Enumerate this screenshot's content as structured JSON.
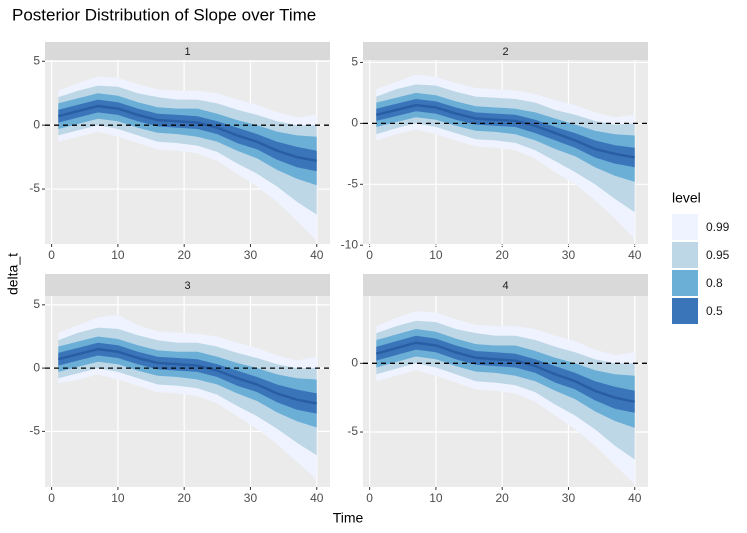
{
  "chart_data": {
    "type": "ribbon",
    "title": "Posterior Distribution of Slope over Time",
    "xlabel": "Time",
    "ylabel": "delta_t",
    "legend_title": "level",
    "grid": true,
    "hline": 0,
    "median_color": "#2a5ea4",
    "x": [
      1,
      4,
      7,
      10,
      13,
      16,
      19,
      22,
      25,
      28,
      31,
      34,
      37,
      40
    ],
    "xlim": [
      -1,
      42
    ],
    "xticks": [
      0,
      10,
      20,
      30,
      40
    ],
    "facets": [
      {
        "label": "1",
        "ylim": [
          -9.3,
          5.1
        ],
        "yticks": [
          -5,
          0,
          5
        ],
        "bands": [
          {
            "name": "0.99",
            "color": "#eff3ff",
            "lower": [
              -1.3,
              -0.9,
              -0.5,
              -0.9,
              -1.4,
              -1.9,
              -2.0,
              -2.2,
              -2.8,
              -3.8,
              -4.8,
              -6.0,
              -7.5,
              -9.0
            ],
            "upper": [
              2.7,
              3.3,
              3.8,
              3.7,
              3.2,
              2.8,
              2.7,
              2.7,
              2.5,
              2.0,
              1.6,
              1.0,
              0.6,
              0.8
            ]
          },
          {
            "name": "0.95",
            "color": "#bdd7e7",
            "lower": [
              -0.8,
              -0.4,
              0,
              -0.3,
              -0.8,
              -1.3,
              -1.4,
              -1.6,
              -2.1,
              -3.0,
              -3.8,
              -4.8,
              -6.0,
              -7.0
            ],
            "upper": [
              2.2,
              2.7,
              3.1,
              3.0,
              2.5,
              2.2,
              2.0,
              2.0,
              1.7,
              1.2,
              0.8,
              0.3,
              0,
              0
            ]
          },
          {
            "name": "0.8",
            "color": "#6baed6",
            "lower": [
              -0.3,
              0.1,
              0.5,
              0.3,
              -0.2,
              -0.6,
              -0.7,
              -0.9,
              -1.3,
              -2.0,
              -2.6,
              -3.5,
              -4.2,
              -4.7
            ],
            "upper": [
              1.7,
              2.1,
              2.5,
              2.3,
              1.8,
              1.4,
              1.3,
              1.3,
              0.9,
              0.4,
              0,
              -0.5,
              -0.8,
              -0.9
            ]
          },
          {
            "name": "0.5",
            "color": "#3a75b9",
            "lower": [
              0.2,
              0.6,
              1.0,
              0.8,
              0.3,
              -0.1,
              -0.2,
              -0.3,
              -0.7,
              -1.4,
              -1.9,
              -2.7,
              -3.3,
              -3.6
            ],
            "upper": [
              1.2,
              1.6,
              2.0,
              1.8,
              1.3,
              0.9,
              0.8,
              0.7,
              0.3,
              -0.2,
              -0.7,
              -1.3,
              -1.7,
              -2.0
            ]
          }
        ],
        "median": [
          0.7,
          1.1,
          1.5,
          1.3,
          0.8,
          0.4,
          0.3,
          0.2,
          -0.2,
          -0.8,
          -1.3,
          -2.0,
          -2.5,
          -2.8
        ]
      },
      {
        "label": "2",
        "ylim": [
          -9.9,
          5.2
        ],
        "yticks": [
          -10,
          -5,
          0,
          5
        ],
        "bands": [
          {
            "name": "0.99",
            "color": "#eff3ff",
            "lower": [
              -1.4,
              -0.9,
              -0.5,
              -0.9,
              -1.4,
              -1.9,
              -2.0,
              -2.2,
              -2.9,
              -4.0,
              -5.0,
              -6.3,
              -7.8,
              -9.5
            ],
            "upper": [
              2.8,
              3.4,
              4.0,
              3.8,
              3.3,
              2.9,
              2.8,
              2.7,
              2.4,
              1.9,
              1.5,
              0.9,
              0.5,
              0.7
            ]
          },
          {
            "name": "0.95",
            "color": "#bdd7e7",
            "lower": [
              -0.9,
              -0.4,
              0,
              -0.3,
              -0.8,
              -1.3,
              -1.4,
              -1.6,
              -2.2,
              -3.1,
              -4.0,
              -5.0,
              -6.2,
              -7.3
            ],
            "upper": [
              2.2,
              2.8,
              3.2,
              3.1,
              2.6,
              2.2,
              2.1,
              2.0,
              1.7,
              1.1,
              0.7,
              0.2,
              -0.1,
              0
            ]
          },
          {
            "name": "0.8",
            "color": "#6baed6",
            "lower": [
              -0.3,
              0.1,
              0.5,
              0.3,
              -0.2,
              -0.6,
              -0.7,
              -0.9,
              -1.4,
              -2.1,
              -2.7,
              -3.6,
              -4.3,
              -4.8
            ],
            "upper": [
              1.7,
              2.1,
              2.5,
              2.3,
              1.8,
              1.4,
              1.3,
              1.2,
              0.9,
              0.4,
              -0.1,
              -0.6,
              -0.9,
              -1.0
            ]
          },
          {
            "name": "0.5",
            "color": "#3a75b9",
            "lower": [
              0.2,
              0.6,
              1.0,
              0.8,
              0.3,
              -0.1,
              -0.2,
              -0.3,
              -0.8,
              -1.4,
              -2.0,
              -2.8,
              -3.3,
              -3.6
            ],
            "upper": [
              1.2,
              1.6,
              2.0,
              1.8,
              1.3,
              0.9,
              0.8,
              0.7,
              0.3,
              -0.3,
              -0.8,
              -1.4,
              -1.8,
              -2.0
            ]
          }
        ],
        "median": [
          0.7,
          1.1,
          1.5,
          1.3,
          0.8,
          0.4,
          0.3,
          0.2,
          -0.2,
          -0.8,
          -1.4,
          -2.1,
          -2.5,
          -2.8
        ]
      },
      {
        "label": "3",
        "ylim": [
          -9.4,
          5.7
        ],
        "yticks": [
          -5,
          0,
          5
        ],
        "bands": [
          {
            "name": "0.99",
            "color": "#eff3ff",
            "lower": [
              -1.2,
              -0.9,
              -0.5,
              -0.9,
              -1.4,
              -1.9,
              -2.0,
              -2.2,
              -2.8,
              -3.8,
              -4.8,
              -6.0,
              -7.4,
              -8.8
            ],
            "upper": [
              2.8,
              3.4,
              4.0,
              4.2,
              3.4,
              2.9,
              2.8,
              2.7,
              2.5,
              2.0,
              1.6,
              1.0,
              0.6,
              0.9
            ]
          },
          {
            "name": "0.95",
            "color": "#bdd7e7",
            "lower": [
              -0.8,
              -0.4,
              0,
              -0.3,
              -0.8,
              -1.3,
              -1.4,
              -1.6,
              -2.1,
              -3.0,
              -3.8,
              -4.8,
              -5.9,
              -6.9
            ],
            "upper": [
              2.2,
              2.8,
              3.2,
              3.1,
              2.6,
              2.2,
              2.0,
              2.0,
              1.7,
              1.2,
              0.8,
              0.3,
              0,
              0
            ]
          },
          {
            "name": "0.8",
            "color": "#6baed6",
            "lower": [
              -0.3,
              0.1,
              0.5,
              0.3,
              -0.2,
              -0.6,
              -0.7,
              -0.9,
              -1.3,
              -2.0,
              -2.6,
              -3.5,
              -4.2,
              -4.7
            ],
            "upper": [
              1.7,
              2.1,
              2.5,
              2.3,
              1.8,
              1.4,
              1.3,
              1.3,
              0.9,
              0.4,
              0,
              -0.5,
              -0.8,
              -0.9
            ]
          },
          {
            "name": "0.5",
            "color": "#3a75b9",
            "lower": [
              0.2,
              0.6,
              1.0,
              0.8,
              0.3,
              -0.1,
              -0.2,
              -0.3,
              -0.7,
              -1.4,
              -1.9,
              -2.7,
              -3.3,
              -3.6
            ],
            "upper": [
              1.2,
              1.6,
              2.0,
              1.8,
              1.3,
              0.9,
              0.8,
              0.7,
              0.3,
              -0.2,
              -0.7,
              -1.3,
              -1.7,
              -2.0
            ]
          }
        ],
        "median": [
          0.7,
          1.1,
          1.5,
          1.3,
          0.8,
          0.4,
          0.3,
          0.2,
          -0.2,
          -0.8,
          -1.3,
          -2.0,
          -2.5,
          -2.8
        ]
      },
      {
        "label": "4",
        "ylim": [
          -9.0,
          4.9
        ],
        "yticks": [
          -5,
          0
        ],
        "bands": [
          {
            "name": "0.99",
            "color": "#eff3ff",
            "lower": [
              -1.3,
              -0.9,
              -0.5,
              -0.9,
              -1.4,
              -1.9,
              -2.0,
              -2.2,
              -2.8,
              -3.8,
              -4.8,
              -6.0,
              -7.4,
              -8.8
            ],
            "upper": [
              2.7,
              3.3,
              3.8,
              3.7,
              3.2,
              2.8,
              2.7,
              2.7,
              2.5,
              2.0,
              1.6,
              1.0,
              0.6,
              0.8
            ]
          },
          {
            "name": "0.95",
            "color": "#bdd7e7",
            "lower": [
              -0.8,
              -0.4,
              0,
              -0.3,
              -0.8,
              -1.3,
              -1.4,
              -1.6,
              -2.1,
              -3.0,
              -3.8,
              -4.8,
              -6.0,
              -7.0
            ],
            "upper": [
              2.2,
              2.7,
              3.1,
              3.0,
              2.5,
              2.2,
              2.0,
              2.0,
              1.7,
              1.2,
              0.8,
              0.3,
              0,
              0
            ]
          },
          {
            "name": "0.8",
            "color": "#6baed6",
            "lower": [
              -0.3,
              0.1,
              0.5,
              0.3,
              -0.2,
              -0.6,
              -0.7,
              -0.9,
              -1.3,
              -2.0,
              -2.6,
              -3.5,
              -4.2,
              -4.7
            ],
            "upper": [
              1.7,
              2.1,
              2.5,
              2.3,
              1.8,
              1.4,
              1.3,
              1.3,
              0.9,
              0.4,
              0,
              -0.5,
              -0.8,
              -0.9
            ]
          },
          {
            "name": "0.5",
            "color": "#3a75b9",
            "lower": [
              0.2,
              0.6,
              1.0,
              0.8,
              0.3,
              -0.1,
              -0.2,
              -0.3,
              -0.7,
              -1.4,
              -1.9,
              -2.7,
              -3.3,
              -3.6
            ],
            "upper": [
              1.2,
              1.6,
              2.0,
              1.8,
              1.3,
              0.9,
              0.8,
              0.7,
              0.3,
              -0.2,
              -0.7,
              -1.3,
              -1.7,
              -2.0
            ]
          }
        ],
        "median": [
          0.7,
          1.1,
          1.5,
          1.3,
          0.8,
          0.4,
          0.3,
          0.2,
          -0.2,
          -0.8,
          -1.3,
          -2.0,
          -2.5,
          -2.8
        ]
      }
    ]
  }
}
